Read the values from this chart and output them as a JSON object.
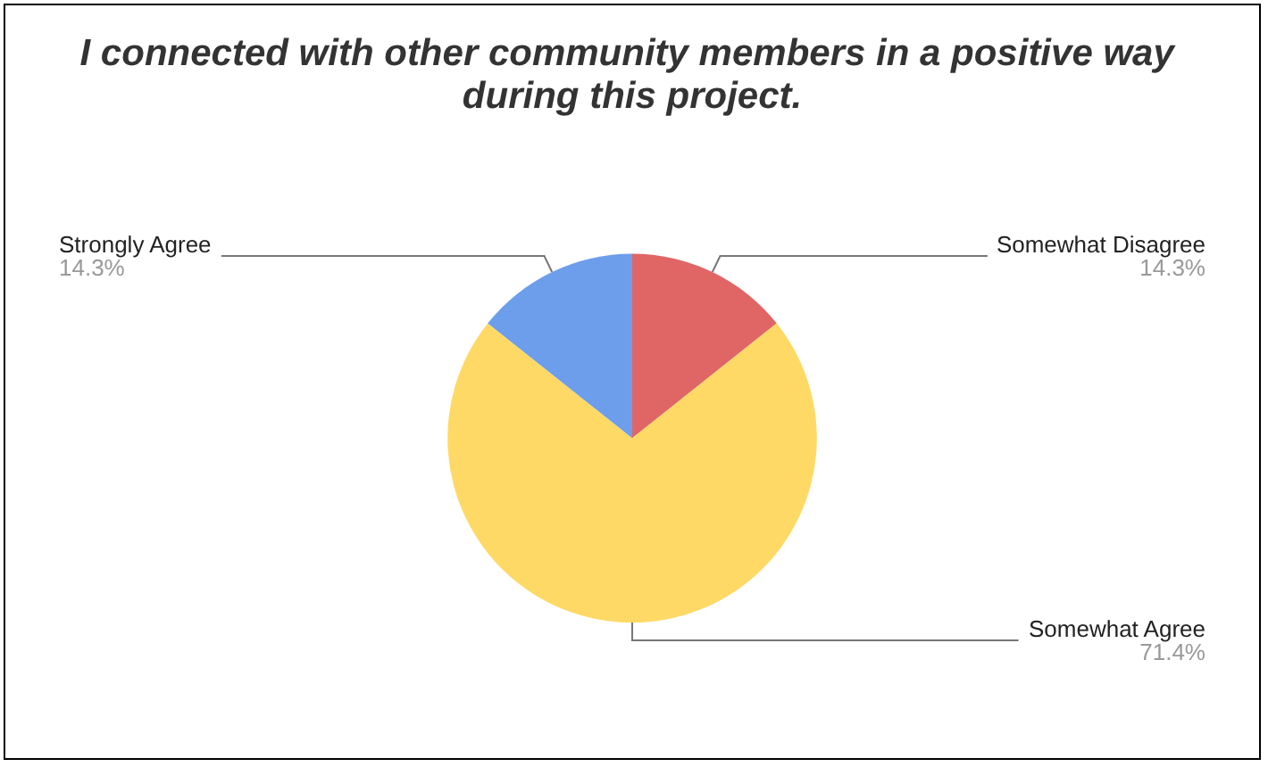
{
  "chart_data": {
    "type": "pie",
    "title": "I connected with other community members in a positive way during this project.",
    "categories": [
      "Somewhat Disagree",
      "Somewhat Agree",
      "Strongly Agree"
    ],
    "values": [
      14.3,
      71.4,
      14.3
    ],
    "colors": [
      "#e06666",
      "#ffd966",
      "#6d9eeb"
    ],
    "value_labels": [
      "14.3%",
      "71.4%",
      "14.3%"
    ],
    "legend": false
  }
}
